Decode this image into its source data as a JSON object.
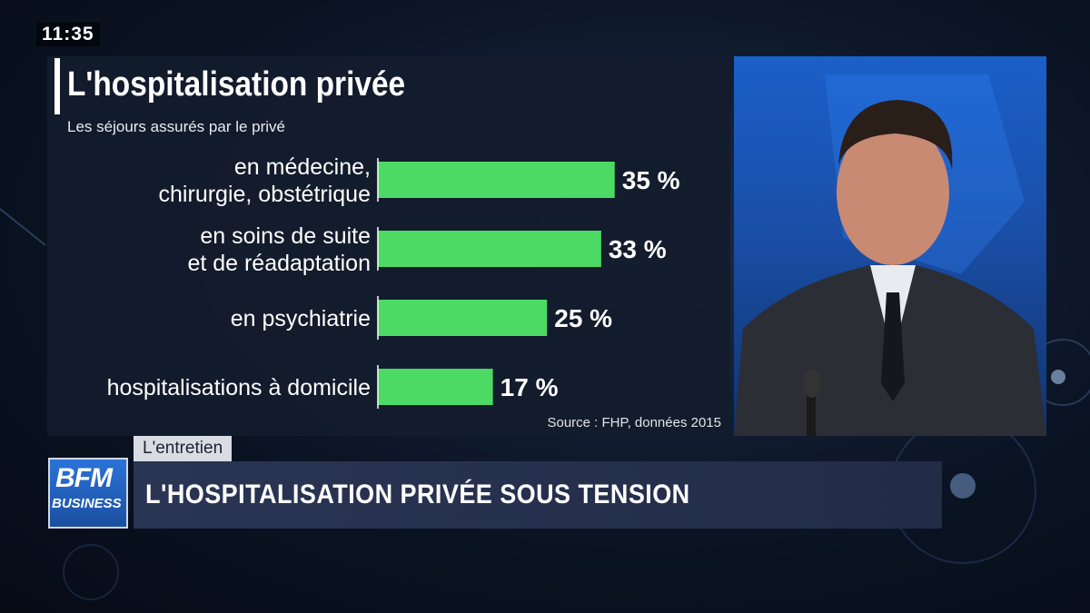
{
  "clock": "11:35",
  "program_tag": "L'entretien",
  "headline": "L'HOSPITALISATION PRIVÉE SOUS TENSION",
  "logo": {
    "line1": "BFM",
    "line2": "BUSINESS"
  },
  "colors": {
    "bar": "#4cd964",
    "panel": "#141c2c",
    "accent_blue": "#1b5fc9"
  },
  "chart_data": {
    "type": "bar",
    "orientation": "horizontal",
    "title": "L'hospitalisation privée",
    "subtitle": "Les séjours assurés par le privé",
    "source": "Source : FHP, données 2015",
    "categories": [
      [
        "en médecine,",
        "chirurgie, obstétrique"
      ],
      [
        "en soins de suite",
        "et de réadaptation"
      ],
      [
        "en psychiatrie"
      ],
      [
        "hospitalisations à domicile"
      ]
    ],
    "values": [
      35,
      33,
      25,
      17
    ],
    "value_labels": [
      "35 %",
      "33 %",
      "25 %",
      "17 %"
    ],
    "xlim": [
      0,
      100
    ],
    "grid": false,
    "legend": "none"
  }
}
